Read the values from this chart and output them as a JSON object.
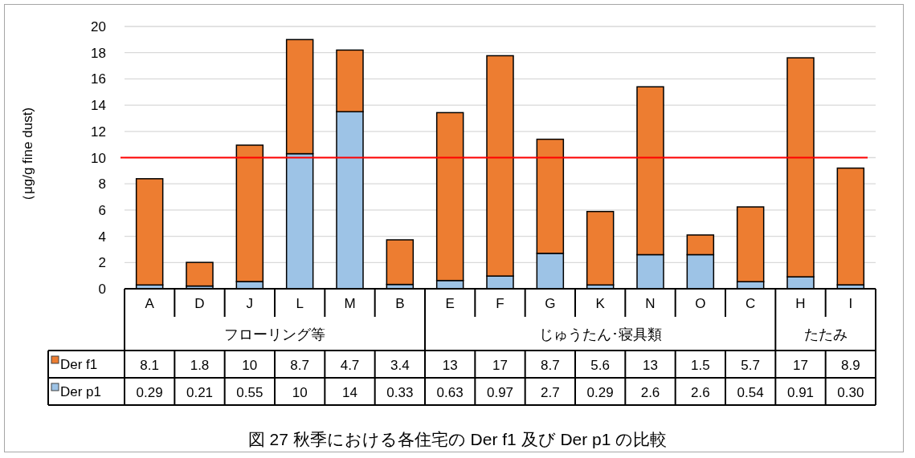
{
  "chart_data": {
    "type": "bar",
    "stacked": true,
    "ylabel": "（μg/g fine dust)",
    "categories": [
      "A",
      "D",
      "J",
      "L",
      "M",
      "B",
      "E",
      "F",
      "G",
      "K",
      "N",
      "O",
      "C",
      "H",
      "I"
    ],
    "ylim": [
      0,
      20
    ],
    "yticks": [
      0,
      2,
      4,
      6,
      8,
      10,
      12,
      14,
      16,
      18,
      20
    ],
    "grid": "y",
    "data_labels": true,
    "legend": "bottom",
    "series": [
      {
        "name": "Der p1",
        "color": "#9dc3e6",
        "values": [
          0.29,
          0.21,
          0.55,
          10.3,
          13.5,
          0.33,
          0.63,
          0.97,
          2.7,
          0.29,
          2.6,
          2.6,
          0.54,
          0.91,
          0.3
        ],
        "value_labels": [
          "0.29",
          "0.21",
          "0.55",
          "10",
          "14",
          "0.33",
          "0.63",
          "0.97",
          "2.7",
          "0.29",
          "2.6",
          "2.6",
          "0.54",
          "0.91",
          "0.30"
        ]
      },
      {
        "name": "Der f1",
        "color": "#ed7d31",
        "values": [
          8.1,
          1.8,
          10.4,
          8.7,
          4.7,
          3.4,
          12.8,
          16.8,
          8.7,
          5.6,
          12.8,
          1.5,
          5.7,
          16.7,
          8.9
        ],
        "value_labels": [
          "8.1",
          "1.8",
          "10",
          "8.7",
          "4.7",
          "3.4",
          "13",
          "17",
          "8.7",
          "5.6",
          "13",
          "1.5",
          "5.7",
          "17",
          "8.9"
        ]
      }
    ],
    "ref_lines": [
      {
        "axis": "y",
        "value": 10,
        "color": "#ff0000"
      }
    ],
    "annotations": [
      "フローリング等",
      "じゅうたん･寝具類",
      "たたみ",
      "図 27 秋季における各住宅の Der f1 及び Der p1 の比較"
    ]
  }
}
